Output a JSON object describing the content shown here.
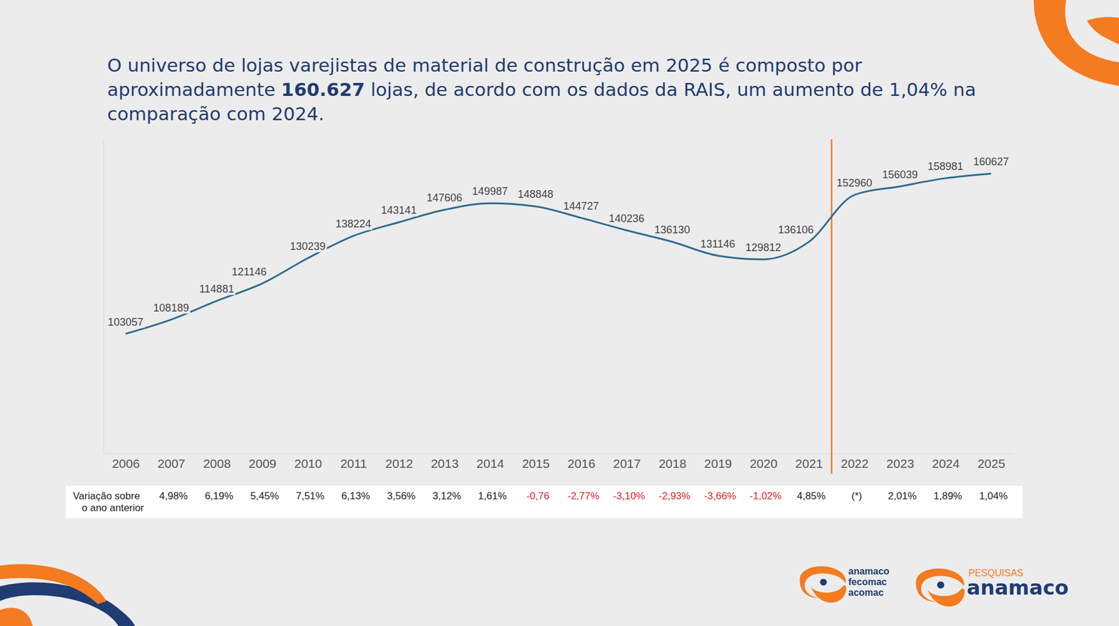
{
  "chart_data": {
    "type": "line",
    "title": "O universo de lojas varejistas de material de construção em 2025 é composto por aproximadamente 160.627 lojas, de acordo com os dados da RAIS, um aumento de 1,04% na comparação com 2024.",
    "title_bold": "160.627",
    "categories": [
      "2006",
      "2007",
      "2008",
      "2009",
      "2010",
      "2011",
      "2012",
      "2013",
      "2014",
      "2015",
      "2016",
      "2017",
      "2018",
      "2019",
      "2020",
      "2021",
      "2022",
      "2023",
      "2024",
      "2025"
    ],
    "values": [
      103057,
      108189,
      114881,
      121146,
      130239,
      138224,
      143141,
      147606,
      149987,
      148848,
      144727,
      140236,
      136130,
      131146,
      129812,
      136106,
      152960,
      156039,
      158981,
      160627
    ],
    "color": "#2f6a8f",
    "ylim": [
      60000,
      173000
    ],
    "data_labels": true,
    "tick_labels": "x",
    "vertical_line": {
      "after": "2021",
      "color": "#f47b20"
    },
    "variation": {
      "label": "Variação sobre o ano anterior",
      "values": [
        null,
        4.98,
        6.19,
        5.45,
        7.51,
        6.13,
        3.56,
        3.12,
        1.61,
        -0.76,
        -2.77,
        -3.1,
        -2.93,
        -3.66,
        -1.02,
        4.85,
        null,
        2.01,
        1.89,
        1.04
      ],
      "value_labels": [
        null,
        "4,98%",
        "6,19%",
        "5,45%",
        "7,51%",
        "6,13%",
        "3,56%",
        "3,12%",
        "1,61%",
        "-0,76",
        "-2,77%",
        "-3,10%",
        "-2,93%",
        "-3,66%",
        "-1,02%",
        "4,85%",
        "(*)",
        "2,01%",
        "1,89%",
        "1,04%"
      ]
    },
    "logos": {
      "left": [
        "anamaco",
        "fecomac",
        "acomac"
      ],
      "right_top": "PESQUISAS",
      "right_main": "anamaco"
    }
  }
}
